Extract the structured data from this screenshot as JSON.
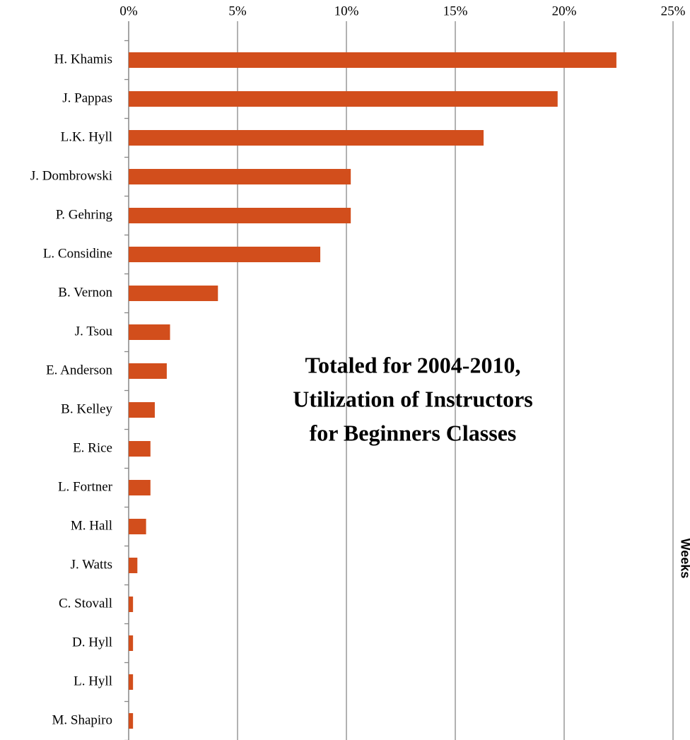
{
  "chart_data": {
    "type": "bar",
    "orientation": "horizontal",
    "title": [
      "Totaled for 2004-2010,",
      "Utilization of Instructors",
      "for Beginners Classes"
    ],
    "annotation": "Weeks",
    "categories": [
      "H. Khamis",
      "J. Pappas",
      "L.K. Hyll",
      "J. Dombrowski",
      "P. Gehring",
      "L. Considine",
      "B. Vernon",
      "J. Tsou",
      "E. Anderson",
      "B. Kelley",
      "E. Rice",
      "L. Fortner",
      "M. Hall",
      "J. Watts",
      "C. Stovall",
      "D. Hyll",
      "L. Hyll",
      "M. Shapiro"
    ],
    "values": [
      22.4,
      19.7,
      16.3,
      10.2,
      10.2,
      8.8,
      4.1,
      1.9,
      1.75,
      1.2,
      1.0,
      1.0,
      0.8,
      0.4,
      0.2,
      0.2,
      0.2,
      0.2
    ],
    "color": "#d24e1c",
    "xlim": [
      0,
      25
    ],
    "xticks": [
      {
        "value": 0,
        "label": "0%"
      },
      {
        "value": 5,
        "label": "5%"
      },
      {
        "value": 10,
        "label": "10%"
      },
      {
        "value": 15,
        "label": "15%"
      },
      {
        "value": 20,
        "label": "20%"
      },
      {
        "value": 25,
        "label": "25%"
      }
    ],
    "grid": true
  }
}
